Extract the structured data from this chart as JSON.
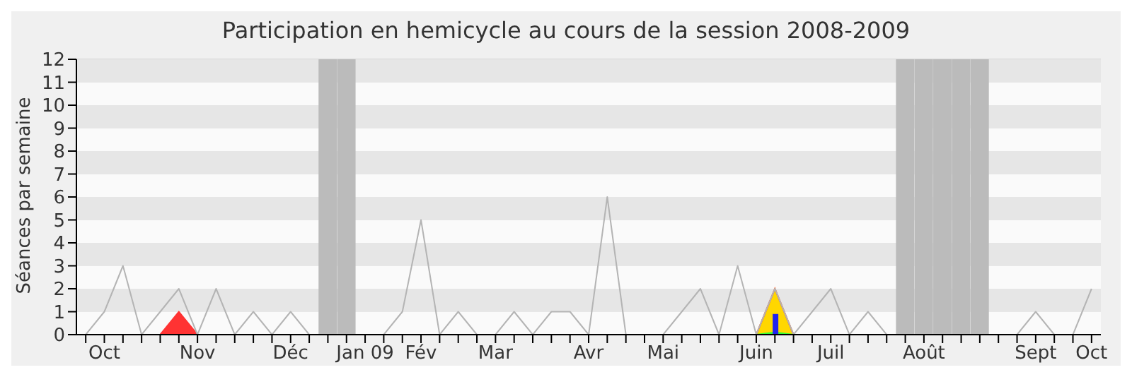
{
  "chart_data": {
    "type": "line",
    "title": "Participation en hemicycle au cours de la session 2008-2009",
    "ylabel": "Séances par semaine",
    "categories": [
      null,
      "Oct",
      null,
      null,
      null,
      null,
      "Nov",
      null,
      null,
      null,
      null,
      "Déc",
      null,
      null,
      null,
      "Jan 09",
      null,
      null,
      "Fév",
      null,
      null,
      null,
      "Mar",
      null,
      null,
      null,
      null,
      "Avr",
      null,
      null,
      null,
      "Mai",
      null,
      null,
      null,
      null,
      "Juin",
      null,
      null,
      null,
      "Juil",
      null,
      null,
      null,
      null,
      "Août",
      null,
      null,
      null,
      null,
      null,
      "Sept",
      null,
      null,
      "Oct"
    ],
    "series": [
      {
        "type": "bar",
        "color": "#bbbbbb",
        "values": [
          null,
          null,
          null,
          null,
          null,
          null,
          null,
          null,
          null,
          null,
          null,
          null,
          null,
          12,
          12,
          null,
          null,
          null,
          null,
          null,
          null,
          null,
          null,
          null,
          null,
          null,
          null,
          null,
          null,
          null,
          null,
          null,
          null,
          null,
          null,
          null,
          null,
          null,
          null,
          null,
          null,
          null,
          null,
          null,
          12,
          12,
          12,
          12,
          12,
          null,
          null,
          null,
          null,
          null,
          null
        ]
      },
      {
        "color": "#b4b4b4",
        "values": [
          0,
          1,
          3,
          0,
          1,
          2,
          0,
          2,
          0,
          1,
          0,
          1,
          0,
          null,
          null,
          null,
          0,
          1,
          5,
          0,
          1,
          0,
          0,
          1,
          0,
          1,
          1,
          0,
          6,
          0,
          0,
          0,
          1,
          2,
          0,
          3,
          0,
          2,
          0,
          1,
          2,
          0,
          1,
          0,
          null,
          null,
          null,
          null,
          null,
          null,
          0,
          1,
          0,
          0,
          2
        ]
      },
      {
        "type": "area",
        "color": "#ff3333",
        "values": [
          null,
          null,
          null,
          null,
          0,
          1,
          0,
          null,
          null,
          null,
          null,
          null,
          null,
          null,
          null,
          null,
          null,
          null,
          null,
          null,
          null,
          null,
          null,
          null,
          null,
          null,
          null,
          null,
          null,
          null,
          null,
          null,
          null,
          null,
          null,
          null,
          null,
          null,
          null,
          null,
          null,
          null,
          null,
          null,
          null,
          null,
          null,
          null,
          null,
          null,
          null,
          null,
          null,
          null,
          null
        ]
      },
      {
        "type": "area",
        "color": "#ffd700",
        "values": [
          null,
          null,
          null,
          null,
          null,
          null,
          null,
          null,
          null,
          null,
          null,
          null,
          null,
          null,
          null,
          null,
          null,
          null,
          null,
          null,
          null,
          null,
          null,
          null,
          null,
          null,
          null,
          null,
          null,
          null,
          null,
          null,
          null,
          null,
          null,
          null,
          0,
          2,
          0,
          null,
          null,
          null,
          null,
          null,
          null,
          null,
          null,
          null,
          null,
          null,
          null,
          null,
          null,
          null,
          null
        ]
      },
      {
        "type": "area",
        "color": "#33ff33",
        "values": [
          null,
          null,
          null,
          null,
          null,
          null,
          null,
          null,
          null,
          null,
          null,
          null,
          null,
          null,
          null,
          null,
          null,
          null,
          null,
          null,
          null,
          null,
          null,
          null,
          null,
          null,
          null,
          null,
          null,
          null,
          null,
          null,
          null,
          null,
          null,
          null,
          0,
          0.1,
          0,
          null,
          null,
          null,
          null,
          null,
          null,
          null,
          null,
          null,
          null,
          null,
          null,
          null,
          null,
          null,
          null
        ]
      },
      {
        "type": "bar",
        "color": "#2222ee",
        "values": [
          null,
          null,
          null,
          null,
          null,
          null,
          null,
          null,
          null,
          null,
          null,
          null,
          null,
          null,
          null,
          null,
          null,
          null,
          null,
          null,
          null,
          null,
          null,
          null,
          null,
          null,
          null,
          null,
          null,
          null,
          null,
          null,
          null,
          null,
          null,
          null,
          null,
          0.9,
          null,
          null,
          null,
          null,
          null,
          null,
          null,
          null,
          null,
          null,
          null,
          null,
          null,
          null,
          null,
          null,
          null
        ]
      }
    ],
    "ylim": [
      0,
      12
    ],
    "yticks": [
      0,
      1,
      2,
      3,
      4,
      5,
      6,
      7,
      8,
      9,
      10,
      11,
      12
    ],
    "grid": "y"
  }
}
